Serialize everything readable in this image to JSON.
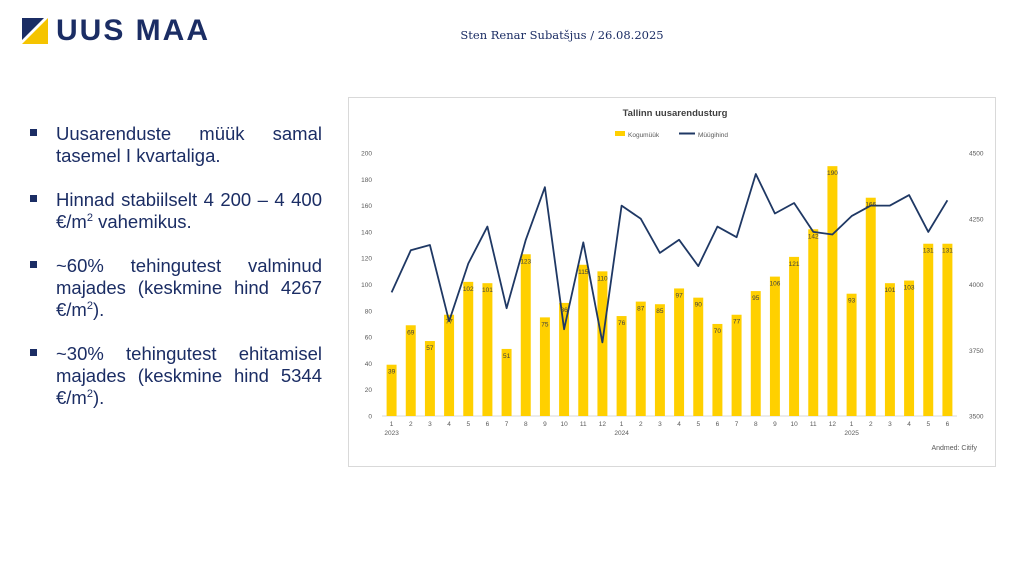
{
  "logo": {
    "text": "UUS MAA",
    "colors": {
      "navy": "#1b2d64",
      "yellow": "#f5c400"
    }
  },
  "header": {
    "author_date": "Sten Renar Subatšjus / 26.08.2025"
  },
  "bullets": [
    {
      "pre": "Uusarenduste müük samal tasemel I kvartaliga.",
      "sup": "",
      "post": ""
    },
    {
      "pre": "Hinnad stabiilselt 4 200 – 4 400 €/m",
      "sup": "2",
      "post": " vahemikus."
    },
    {
      "pre": "~60% tehingutest valminud majades (keskmine hind 4267 €/m",
      "sup": "2",
      "post": ")."
    },
    {
      "pre": "~30% tehingutest ehitamisel majades (keskmine hind 5344 €/m",
      "sup": "2",
      "post": ")."
    }
  ],
  "chart_data": {
    "type": "bar",
    "title": "Tallinn uusarendusturg",
    "source": "Andmed: Citify",
    "categories": [
      "1",
      "2",
      "3",
      "4",
      "5",
      "6",
      "7",
      "8",
      "9",
      "10",
      "11",
      "12",
      "1",
      "2",
      "3",
      "4",
      "5",
      "6",
      "7",
      "8",
      "9",
      "10",
      "11",
      "12",
      "1",
      "2",
      "3",
      "4",
      "5",
      "6"
    ],
    "year_labels": [
      {
        "index": 0,
        "label": "2023"
      },
      {
        "index": 12,
        "label": "2024"
      },
      {
        "index": 24,
        "label": "2025"
      }
    ],
    "series": [
      {
        "name": "Kogumüük",
        "type": "bar",
        "axis": "left",
        "color": "#ffd000",
        "values": [
          39,
          69,
          57,
          77,
          102,
          101,
          51,
          123,
          75,
          86,
          115,
          110,
          76,
          87,
          85,
          97,
          90,
          70,
          77,
          95,
          106,
          121,
          142,
          190,
          93,
          166,
          101,
          103,
          131,
          131
        ]
      },
      {
        "name": "Müügihind",
        "type": "line",
        "axis": "right",
        "color": "#1f3864",
        "values": [
          3970,
          4130,
          4150,
          3860,
          4080,
          4220,
          3910,
          4170,
          4370,
          3830,
          4160,
          3780,
          4300,
          4250,
          4120,
          4170,
          4070,
          4220,
          4180,
          4420,
          4270,
          4310,
          4200,
          4190,
          4260,
          4300,
          4300,
          4340,
          4200,
          4320
        ]
      }
    ],
    "ylim_left": [
      0,
      200
    ],
    "yticks_left": [
      0,
      20,
      40,
      60,
      80,
      100,
      120,
      140,
      160,
      180,
      200
    ],
    "ylim_right": [
      3500,
      4500
    ],
    "yticks_right": [
      3500,
      3750,
      4000,
      4250,
      4500
    ],
    "legend_position": "top-center",
    "grid": false
  }
}
